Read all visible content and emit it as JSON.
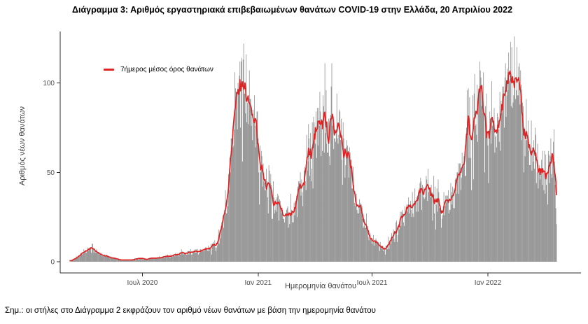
{
  "title": "Διάγραμμα 3: Αριθμός εργαστηριακά επιβεβαιωμένων θανάτων COVID-19 στην Ελλάδα, 20 Απριλίου 2022",
  "note": "Σημ.: οι στήλες στο Διάγραμμα 2 εκφράζουν τον αριθμό νέων θανάτων με βάση την ημερομηνία θανάτου",
  "chart_data": {
    "type": "bar",
    "description": "Daily laboratory-confirmed COVID-19 deaths in Greece by date of death (gray bars) with a red 7-day moving average line, March 2020 to 20 April 2022",
    "xlabel": "Ημερομηνία θανάτου",
    "ylabel": "Αριθμός νέων θανάτων",
    "legend": {
      "label": "7ήμερος μέσος όρος θανάτων",
      "color": "#dd2323",
      "position": "top-left-inside"
    },
    "bar_color": "#8c8c8c",
    "line_color": "#dd2323",
    "axis_color": "#2b2b2b",
    "tick_text_color": "#4d4d4d",
    "grid": false,
    "ylim": [
      0,
      130
    ],
    "y_ticks": [
      {
        "label": "0",
        "value": 0
      },
      {
        "label": "50",
        "value": 50
      },
      {
        "label": "100",
        "value": 100
      }
    ],
    "x_ticks": [
      {
        "label": "Ιουλ 2020",
        "date": "2020-07-01"
      },
      {
        "label": "Ιαν 2021",
        "date": "2021-01-01"
      },
      {
        "label": "Ιουλ 2021",
        "date": "2021-07-01"
      },
      {
        "label": "Ιαν 2022",
        "date": "2022-01-01"
      }
    ],
    "x_start_date": "2020-03-08",
    "x_end_date": "2022-04-20",
    "avg_7day_weekly": {
      "start_date": "2020-03-08",
      "step_days": 7,
      "values": [
        0.5,
        1.5,
        3,
        5,
        6.5,
        7,
        5.5,
        4,
        3,
        2.5,
        2,
        1.5,
        1,
        1,
        1,
        1.5,
        2,
        1.5,
        1.5,
        2,
        2,
        2.5,
        3,
        3.5,
        4,
        4.5,
        5,
        5,
        5.5,
        6,
        6.5,
        7,
        8,
        10,
        14,
        24,
        42,
        68,
        90,
        100,
        97,
        88,
        75,
        62,
        52,
        44,
        37,
        31,
        26,
        24,
        26,
        30,
        37,
        46,
        55,
        63,
        71,
        77,
        81,
        76,
        78,
        73,
        65,
        55,
        45,
        36,
        28,
        21,
        15,
        12,
        9.5,
        7.5,
        9,
        13,
        18,
        22,
        27,
        31,
        34,
        37,
        38,
        39,
        37,
        34,
        31,
        32,
        34,
        37,
        44,
        54,
        66,
        78,
        87,
        92,
        93,
        87,
        78,
        72,
        81,
        95,
        104,
        101,
        93,
        82,
        70,
        62,
        55,
        50,
        48,
        56,
        62,
        58,
        52
      ]
    },
    "key_points": {
      "wave1_peak": {
        "date": "2020-12-05",
        "avg": 100
      },
      "trough_feb2021": {
        "date": "2021-02-14",
        "avg": 24
      },
      "wave2_peak": {
        "date": "2021-04-18",
        "avg": 81
      },
      "trough_jul2021": {
        "date": "2021-07-18",
        "avg": 7.5
      },
      "autumn2021_plateau": {
        "date": "2021-09-19",
        "avg": 39
      },
      "wave3_first_peak": {
        "date": "2021-12-19",
        "avg": 93
      },
      "jan2022_dip": {
        "date": "2022-01-09",
        "avg": 72
      },
      "wave3_second_peak": {
        "date": "2022-01-30",
        "avg": 104
      },
      "max_single_day_bar": 128
    },
    "bars_note": "daily gray bars scatter around the 7-day average; last 2-3 days drop sharply (incomplete reporting)",
    "noise_seed": 20220420
  }
}
